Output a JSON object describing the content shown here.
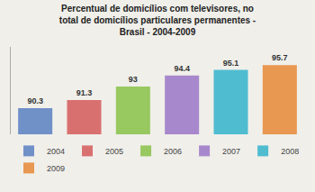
{
  "chart_data": {
    "type": "bar",
    "title": "Percentual de domicílios com televisores, no\ntotal de domicílios particulares permanentes -\nBrasil - 2004-2009",
    "categories": [
      "2004",
      "2005",
      "2006",
      "2007",
      "2008",
      "2009"
    ],
    "values": [
      90.3,
      91.3,
      93.0,
      94.4,
      95.1,
      95.7
    ],
    "colors": [
      "#7090c8",
      "#d97070",
      "#98c860",
      "#a888cc",
      "#50bcd0",
      "#e89850"
    ],
    "ylim": [
      87,
      98
    ],
    "data_labels": true,
    "tick_labels": false,
    "legend": "bottom"
  }
}
